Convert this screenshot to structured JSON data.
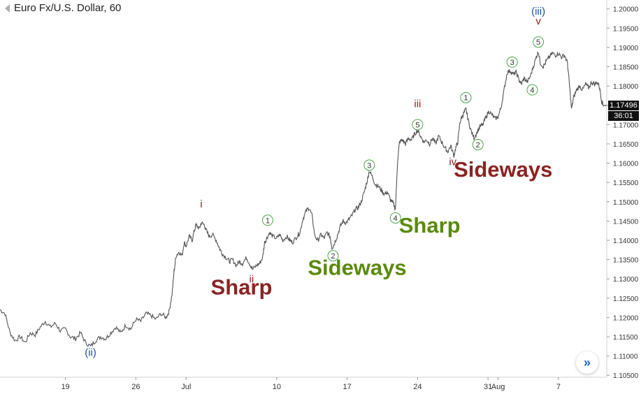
{
  "header": {
    "symbol_title": "Euro Fx/U.S. Dollar, 60"
  },
  "price_tags": {
    "last_price": "1.17496",
    "countdown": "36:01"
  },
  "colors": {
    "red_label": "#8b2323",
    "green_label": "#5a8a0c",
    "blue_label": "#1f4e9c",
    "circle": "#4aa84a",
    "line": "#555555"
  },
  "nav_button_icon": "double-chevron-right-icon",
  "chart_data": {
    "type": "line",
    "title": "Euro Fx/U.S. Dollar, 60",
    "ylim": [
      1.1045,
      1.2023
    ],
    "y_ticks": [
      "1.20000",
      "1.19500",
      "1.19000",
      "1.18500",
      "1.18000",
      "1.17500",
      "1.17000",
      "1.16500",
      "1.16000",
      "1.15500",
      "1.15000",
      "1.14500",
      "1.14000",
      "1.13500",
      "1.13000",
      "1.12500",
      "1.12000",
      "1.11500",
      "1.11000",
      "1.10500"
    ],
    "x_ticks": [
      {
        "label": "19",
        "day": 19
      },
      {
        "label": "26",
        "day": 26
      },
      {
        "label": "Jul",
        "day": 31
      },
      {
        "label": "10",
        "day": 40
      },
      {
        "label": "17",
        "day": 47
      },
      {
        "label": "24",
        "day": 54
      },
      {
        "label": "31",
        "day": 61
      },
      {
        "label": "Aug",
        "day": 62
      },
      {
        "label": "7",
        "day": 68
      }
    ],
    "price_path": [
      [
        12.5,
        1.122
      ],
      [
        13.0,
        1.121
      ],
      [
        13.5,
        1.116
      ],
      [
        14.0,
        1.114
      ],
      [
        14.5,
        1.115
      ],
      [
        15.0,
        1.1135
      ],
      [
        15.5,
        1.116
      ],
      [
        16.0,
        1.1155
      ],
      [
        16.5,
        1.1175
      ],
      [
        17.0,
        1.119
      ],
      [
        17.5,
        1.1175
      ],
      [
        18.0,
        1.1185
      ],
      [
        18.5,
        1.1165
      ],
      [
        19.0,
        1.117
      ],
      [
        19.5,
        1.115
      ],
      [
        20.0,
        1.1145
      ],
      [
        20.5,
        1.116
      ],
      [
        21.0,
        1.1135
      ],
      [
        21.5,
        1.1125
      ],
      [
        22.0,
        1.114
      ],
      [
        22.5,
        1.115
      ],
      [
        23.0,
        1.1145
      ],
      [
        23.5,
        1.116
      ],
      [
        24.0,
        1.1175
      ],
      [
        24.5,
        1.116
      ],
      [
        25.0,
        1.118
      ],
      [
        25.5,
        1.117
      ],
      [
        26.0,
        1.1195
      ],
      [
        26.5,
        1.119
      ],
      [
        27.0,
        1.121
      ],
      [
        27.5,
        1.1205
      ],
      [
        28.0,
        1.1195
      ],
      [
        28.5,
        1.121
      ],
      [
        29.0,
        1.12
      ],
      [
        29.3,
        1.1215
      ],
      [
        29.6,
        1.126
      ],
      [
        29.8,
        1.132
      ],
      [
        30.0,
        1.136
      ],
      [
        30.3,
        1.137
      ],
      [
        30.6,
        1.136
      ],
      [
        30.8,
        1.1395
      ],
      [
        31.0,
        1.1385
      ],
      [
        31.3,
        1.141
      ],
      [
        31.6,
        1.14
      ],
      [
        31.8,
        1.1425
      ],
      [
        32.0,
        1.144
      ],
      [
        32.3,
        1.143
      ],
      [
        32.5,
        1.1445
      ],
      [
        32.8,
        1.144
      ],
      [
        33.0,
        1.1425
      ],
      [
        33.3,
        1.141
      ],
      [
        33.6,
        1.1415
      ],
      [
        34.0,
        1.14
      ],
      [
        34.3,
        1.138
      ],
      [
        34.6,
        1.1365
      ],
      [
        35.0,
        1.1355
      ],
      [
        35.3,
        1.1345
      ],
      [
        35.6,
        1.135
      ],
      [
        36.0,
        1.1335
      ],
      [
        36.3,
        1.1345
      ],
      [
        36.6,
        1.134
      ],
      [
        37.0,
        1.1355
      ],
      [
        37.3,
        1.134
      ],
      [
        37.6,
        1.1325
      ],
      [
        38.0,
        1.1335
      ],
      [
        38.3,
        1.134
      ],
      [
        38.6,
        1.1355
      ],
      [
        38.8,
        1.1395
      ],
      [
        39.0,
        1.1405
      ],
      [
        39.3,
        1.142
      ],
      [
        39.6,
        1.141
      ],
      [
        40.0,
        1.1405
      ],
      [
        40.3,
        1.1415
      ],
      [
        40.6,
        1.14
      ],
      [
        41.0,
        1.141
      ],
      [
        41.3,
        1.14
      ],
      [
        41.6,
        1.1395
      ],
      [
        42.0,
        1.141
      ],
      [
        42.3,
        1.142
      ],
      [
        42.6,
        1.1455
      ],
      [
        42.9,
        1.1475
      ],
      [
        43.2,
        1.1485
      ],
      [
        43.5,
        1.1465
      ],
      [
        43.8,
        1.141
      ],
      [
        44.1,
        1.14
      ],
      [
        44.4,
        1.1415
      ],
      [
        44.7,
        1.1405
      ],
      [
        45.0,
        1.142
      ],
      [
        45.3,
        1.141
      ],
      [
        45.5,
        1.138
      ],
      [
        45.7,
        1.139
      ],
      [
        46.0,
        1.141
      ],
      [
        46.3,
        1.1435
      ],
      [
        46.6,
        1.145
      ],
      [
        46.9,
        1.1445
      ],
      [
        47.2,
        1.1455
      ],
      [
        47.5,
        1.1465
      ],
      [
        47.8,
        1.148
      ],
      [
        48.1,
        1.1485
      ],
      [
        48.4,
        1.15
      ],
      [
        48.7,
        1.1525
      ],
      [
        49.0,
        1.1555
      ],
      [
        49.2,
        1.158
      ],
      [
        49.5,
        1.1565
      ],
      [
        49.8,
        1.1545
      ],
      [
        50.1,
        1.154
      ],
      [
        50.4,
        1.153
      ],
      [
        50.7,
        1.152
      ],
      [
        51.0,
        1.1525
      ],
      [
        51.3,
        1.1505
      ],
      [
        51.6,
        1.1495
      ],
      [
        51.8,
        1.148
      ],
      [
        52.0,
        1.16
      ],
      [
        52.2,
        1.1655
      ],
      [
        52.5,
        1.166
      ],
      [
        52.8,
        1.165
      ],
      [
        53.1,
        1.1665
      ],
      [
        53.4,
        1.166
      ],
      [
        53.7,
        1.1675
      ],
      [
        54.0,
        1.1685
      ],
      [
        54.3,
        1.167
      ],
      [
        54.6,
        1.1655
      ],
      [
        54.9,
        1.166
      ],
      [
        55.2,
        1.165
      ],
      [
        55.5,
        1.1665
      ],
      [
        55.8,
        1.165
      ],
      [
        56.1,
        1.167
      ],
      [
        56.4,
        1.1655
      ],
      [
        56.7,
        1.164
      ],
      [
        57.0,
        1.163
      ],
      [
        57.3,
        1.1645
      ],
      [
        57.6,
        1.162
      ],
      [
        57.8,
        1.164
      ],
      [
        58.0,
        1.1655
      ],
      [
        58.2,
        1.1705
      ],
      [
        58.4,
        1.172
      ],
      [
        58.6,
        1.173
      ],
      [
        58.8,
        1.174
      ],
      [
        59.0,
        1.1715
      ],
      [
        59.3,
        1.1685
      ],
      [
        59.6,
        1.1665
      ],
      [
        59.9,
        1.168
      ],
      [
        60.2,
        1.1695
      ],
      [
        60.5,
        1.17
      ],
      [
        60.8,
        1.172
      ],
      [
        61.1,
        1.1735
      ],
      [
        61.4,
        1.1725
      ],
      [
        61.7,
        1.1715
      ],
      [
        62.0,
        1.172
      ],
      [
        62.3,
        1.1745
      ],
      [
        62.6,
        1.179
      ],
      [
        62.9,
        1.1835
      ],
      [
        63.2,
        1.184
      ],
      [
        63.5,
        1.183
      ],
      [
        63.8,
        1.1835
      ],
      [
        64.1,
        1.1815
      ],
      [
        64.3,
        1.1805
      ],
      [
        64.6,
        1.182
      ],
      [
        64.9,
        1.181
      ],
      [
        65.2,
        1.1825
      ],
      [
        65.5,
        1.185
      ],
      [
        65.8,
        1.1875
      ],
      [
        66.0,
        1.189
      ],
      [
        66.2,
        1.186
      ],
      [
        66.5,
        1.185
      ],
      [
        66.8,
        1.1865
      ],
      [
        67.1,
        1.1875
      ],
      [
        67.4,
        1.1885
      ],
      [
        67.7,
        1.188
      ],
      [
        68.0,
        1.1885
      ],
      [
        68.3,
        1.1875
      ],
      [
        68.6,
        1.188
      ],
      [
        68.9,
        1.186
      ],
      [
        69.1,
        1.18
      ],
      [
        69.3,
        1.174
      ],
      [
        69.5,
        1.177
      ],
      [
        69.8,
        1.179
      ],
      [
        70.1,
        1.18
      ],
      [
        70.4,
        1.179
      ],
      [
        70.7,
        1.1805
      ],
      [
        71.0,
        1.1795
      ],
      [
        71.3,
        1.181
      ],
      [
        71.6,
        1.1805
      ],
      [
        71.9,
        1.181
      ],
      [
        72.1,
        1.1795
      ],
      [
        72.3,
        1.176
      ],
      [
        72.5,
        1.175
      ]
    ],
    "wave_labels": [
      {
        "text": "(ii)",
        "day": 21.5,
        "price": 1.11,
        "style": "blue"
      },
      {
        "text": "i",
        "day": 32.5,
        "price": 1.1485,
        "style": "red"
      },
      {
        "text": "ii",
        "day": 37.5,
        "price": 1.129,
        "style": "red"
      },
      {
        "text": "iii",
        "day": 54.0,
        "price": 1.1745,
        "style": "red"
      },
      {
        "text": "iv",
        "day": 57.5,
        "price": 1.1595,
        "style": "red"
      },
      {
        "text": "(iii)",
        "day": 66.0,
        "price": 1.1985,
        "style": "blue"
      },
      {
        "text": "v",
        "day": 66.0,
        "price": 1.196,
        "style": "red"
      }
    ],
    "wave_circles": [
      {
        "text": "1",
        "day": 39.1,
        "price": 1.1452
      },
      {
        "text": "2",
        "day": 45.6,
        "price": 1.136
      },
      {
        "text": "3",
        "day": 49.2,
        "price": 1.1595
      },
      {
        "text": "4",
        "day": 51.8,
        "price": 1.1458
      },
      {
        "text": "5",
        "day": 54.0,
        "price": 1.17
      },
      {
        "text": "1",
        "day": 58.8,
        "price": 1.177
      },
      {
        "text": "2",
        "day": 60.0,
        "price": 1.1648
      },
      {
        "text": "3",
        "day": 63.4,
        "price": 1.1862
      },
      {
        "text": "4",
        "day": 65.4,
        "price": 1.179
      },
      {
        "text": "5",
        "day": 66.0,
        "price": 1.1914
      }
    ],
    "annotations": [
      {
        "text": "Sharp",
        "day": 36.5,
        "price": 1.126,
        "style": "red"
      },
      {
        "text": "Sideways",
        "day": 48.0,
        "price": 1.131,
        "style": "green"
      },
      {
        "text": "Sharp",
        "day": 55.2,
        "price": 1.142,
        "style": "green"
      },
      {
        "text": "Sideways",
        "day": 62.5,
        "price": 1.1565,
        "style": "red"
      }
    ]
  }
}
